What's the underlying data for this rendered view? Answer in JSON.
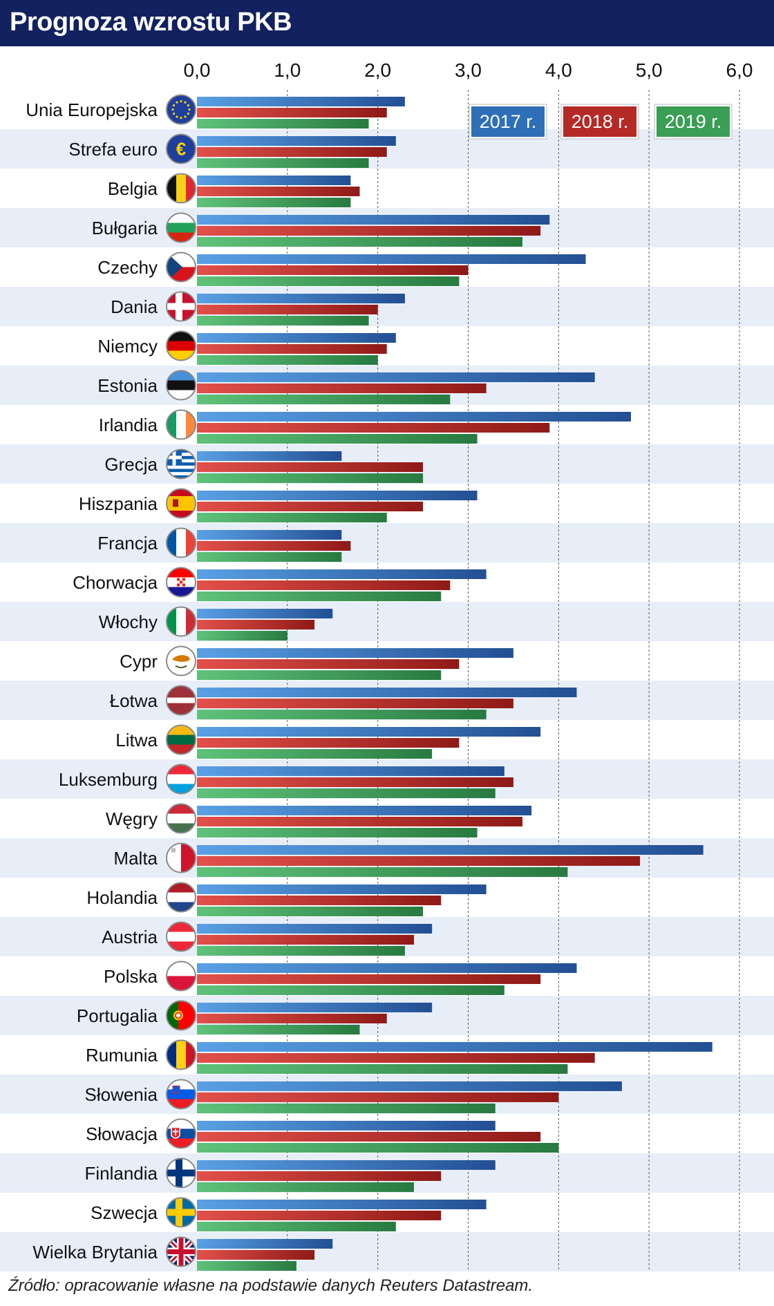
{
  "header": {
    "title": "Prognoza wzrostu PKB"
  },
  "source": "Źródło: opracowanie własne na podstawie danych Reuters Datastream.",
  "chart_data": {
    "type": "bar",
    "orientation": "horizontal",
    "title": "Prognoza wzrostu PKB",
    "xlim": [
      0,
      6
    ],
    "xticks": [
      "0,0",
      "1,0",
      "2,0",
      "3,0",
      "4,0",
      "5,0",
      "6,0"
    ],
    "legend_position": "top-right",
    "grid": true,
    "categories": [
      "Unia Europejska",
      "Strefa euro",
      "Belgia",
      "Bułgaria",
      "Czechy",
      "Dania",
      "Niemcy",
      "Estonia",
      "Irlandia",
      "Grecja",
      "Hiszpania",
      "Francja",
      "Chorwacja",
      "Włochy",
      "Cypr",
      "Łotwa",
      "Litwa",
      "Luksemburg",
      "Węgry",
      "Malta",
      "Holandia",
      "Austria",
      "Polska",
      "Portugalia",
      "Rumunia",
      "Słowenia",
      "Słowacja",
      "Finlandia",
      "Szwecja",
      "Wielka Brytania"
    ],
    "flags": [
      "eu-flag",
      "euro-flag",
      "belgium-flag",
      "bulgaria-flag",
      "czechia-flag",
      "denmark-flag",
      "germany-flag",
      "estonia-flag",
      "ireland-flag",
      "greece-flag",
      "spain-flag",
      "france-flag",
      "croatia-flag",
      "italy-flag",
      "cyprus-flag",
      "latvia-flag",
      "lithuania-flag",
      "luxembourg-flag",
      "hungary-flag",
      "malta-flag",
      "netherlands-flag",
      "austria-flag",
      "poland-flag",
      "portugal-flag",
      "romania-flag",
      "slovenia-flag",
      "slovakia-flag",
      "finland-flag",
      "sweden-flag",
      "uk-flag"
    ],
    "series": [
      {
        "name": "2017 r.",
        "color": "#2e6fb8",
        "values": [
          2.3,
          2.2,
          1.7,
          3.9,
          4.3,
          2.3,
          2.2,
          4.4,
          4.8,
          1.6,
          3.1,
          1.6,
          3.2,
          1.5,
          3.5,
          4.2,
          3.8,
          3.4,
          3.7,
          5.6,
          3.2,
          2.6,
          4.2,
          2.6,
          5.7,
          4.7,
          3.3,
          3.3,
          3.2,
          1.5
        ]
      },
      {
        "name": "2018 r.",
        "color": "#b52a26",
        "values": [
          2.1,
          2.1,
          1.8,
          3.8,
          3.0,
          2.0,
          2.1,
          3.2,
          3.9,
          2.5,
          2.5,
          1.7,
          2.8,
          1.3,
          2.9,
          3.5,
          2.9,
          3.5,
          3.6,
          4.9,
          2.7,
          2.4,
          3.8,
          2.1,
          4.4,
          4.0,
          3.8,
          2.7,
          2.7,
          1.3
        ]
      },
      {
        "name": "2019 r.",
        "color": "#3a9e55",
        "values": [
          1.9,
          1.9,
          1.7,
          3.6,
          2.9,
          1.9,
          2.0,
          2.8,
          3.1,
          2.5,
          2.1,
          1.6,
          2.7,
          1.0,
          2.7,
          3.2,
          2.6,
          3.3,
          3.1,
          4.1,
          2.5,
          2.3,
          3.4,
          1.8,
          4.1,
          3.3,
          4.0,
          2.4,
          2.2,
          1.1
        ]
      }
    ]
  }
}
